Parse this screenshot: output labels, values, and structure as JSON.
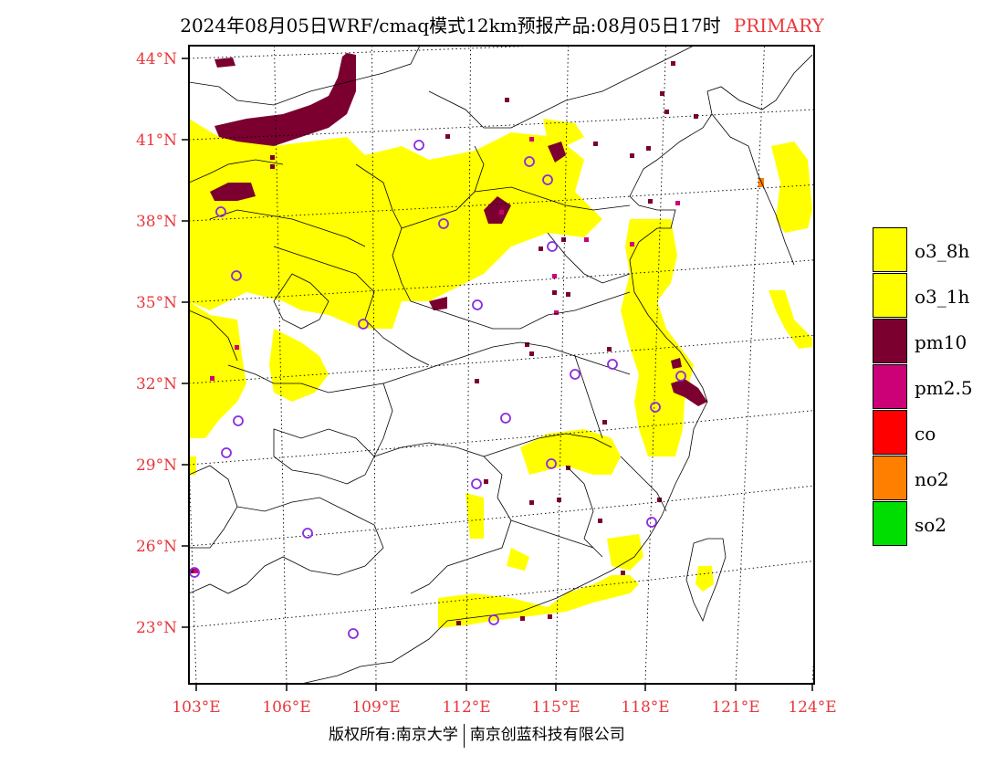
{
  "title": {
    "main": "2024年08月05日WRF/cmaq模式12km预报产品:08月05日17时",
    "tag": "PRIMARY"
  },
  "map": {
    "lat_ticks": [
      "44°N",
      "41°N",
      "38°N",
      "35°N",
      "32°N",
      "29°N",
      "26°N",
      "23°N"
    ],
    "lon_ticks": [
      "103°E",
      "106°E",
      "109°E",
      "112°E",
      "115°E",
      "118°E",
      "121°E",
      "124°E"
    ],
    "colors": {
      "o3": "#ffff00",
      "pm10": "#7b0030",
      "pm25": "#cc0077",
      "no2": "#ff8000",
      "station": "#8a2be2",
      "frame": "#000000",
      "tick_text": "#e8373b"
    }
  },
  "legend": [
    {
      "label": "o3_8h",
      "color": "#ffff00"
    },
    {
      "label": "o3_1h",
      "color": "#ffff00"
    },
    {
      "label": "pm10",
      "color": "#7b0030"
    },
    {
      "label": "pm2.5",
      "color": "#cc0077"
    },
    {
      "label": "co",
      "color": "#ff0000"
    },
    {
      "label": "no2",
      "color": "#ff8000"
    },
    {
      "label": "so2",
      "color": "#00dd00"
    }
  ],
  "footer": {
    "left": "版权所有:南京大学",
    "right": "南京创蓝科技有限公司"
  }
}
